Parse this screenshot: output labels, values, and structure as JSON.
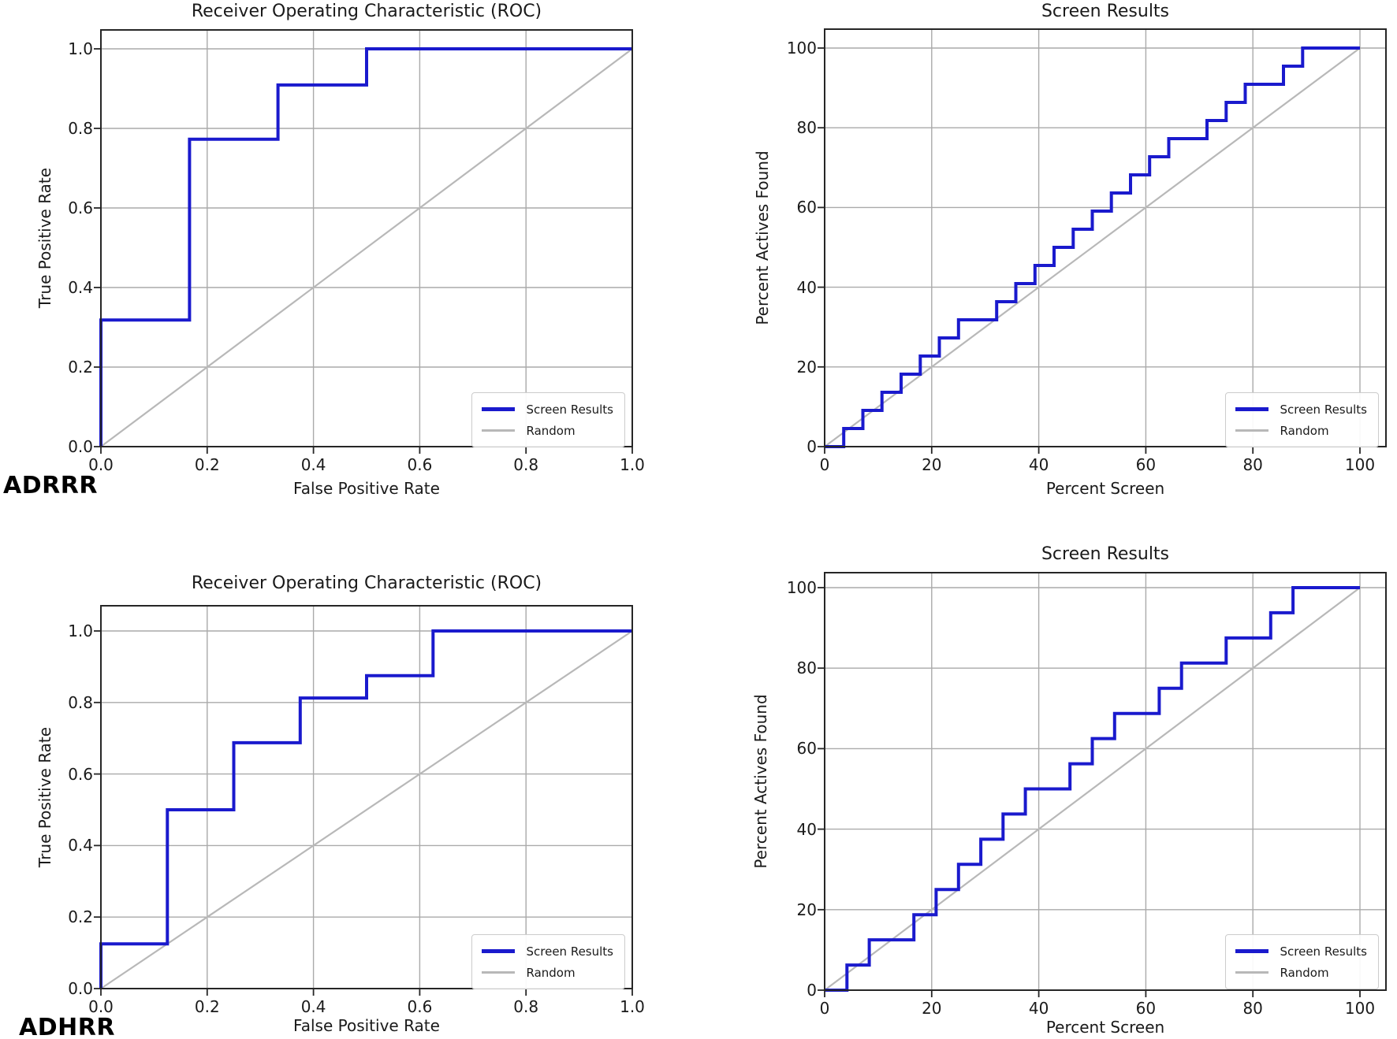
{
  "meta": {
    "background": "#ffffff",
    "text_color": "#1a1a1a",
    "grid_color": "#aaaaaa",
    "spine_color": "#262626",
    "accent_blue": "#1a1acd",
    "random_gray": "#b8b8b8"
  },
  "figure": {
    "panel_labels": [
      "ADRRR",
      "ADHRR"
    ]
  },
  "chart_data": [
    {
      "id": "adrrr-roc",
      "panel": "ADRRR",
      "type": "line",
      "title": "Receiver Operating Characteristic (ROC)",
      "xlabel": "False Positive Rate",
      "ylabel": "True Positive Rate",
      "xlim": [
        0,
        1.0
      ],
      "ylim": [
        0,
        1.05
      ],
      "grid": true,
      "xtick_values": [
        0,
        0.2,
        0.4,
        0.6,
        0.8,
        1.0
      ],
      "xtick_labels": [
        "0.0",
        "0.2",
        "0.4",
        "0.6",
        "0.8",
        "1.0"
      ],
      "ytick_values": [
        0,
        0.2,
        0.4,
        0.6,
        0.8,
        1.0
      ],
      "ytick_labels": [
        "0.0",
        "0.2",
        "0.4",
        "0.6",
        "0.8",
        "1.0"
      ],
      "legend": {
        "position": "lower right"
      },
      "series": [
        {
          "name": "Screen Results",
          "color": "#1a1acd",
          "line_width": 4,
          "drawstyle": "steps-post",
          "points": [
            [
              0,
              0
            ],
            [
              0,
              0.3182
            ],
            [
              0.1667,
              0.3182
            ],
            [
              0.1667,
              0.7727
            ],
            [
              0.3333,
              0.7727
            ],
            [
              0.3333,
              0.9091
            ],
            [
              0.5,
              0.9091
            ],
            [
              0.5,
              1.0
            ],
            [
              1.0,
              1.0
            ]
          ]
        },
        {
          "name": "Random",
          "color": "#b8b8b8",
          "line_width": 2.2,
          "drawstyle": "default",
          "points": [
            [
              0,
              0
            ],
            [
              1.0,
              1.0
            ]
          ]
        }
      ]
    },
    {
      "id": "adrrr-screen",
      "panel": "ADRRR",
      "type": "line",
      "title": "Screen Results",
      "xlabel": "Percent Screen",
      "ylabel": "Percent Actives Found",
      "xlim": [
        0,
        105
      ],
      "ylim": [
        0,
        105
      ],
      "grid": true,
      "xtick_values": [
        0,
        20,
        40,
        60,
        80,
        100
      ],
      "xtick_labels": [
        "0",
        "20",
        "40",
        "60",
        "80",
        "100"
      ],
      "ytick_values": [
        0,
        20,
        40,
        60,
        80,
        100
      ],
      "ytick_labels": [
        "0",
        "20",
        "40",
        "60",
        "80",
        "100"
      ],
      "legend": {
        "position": "lower right"
      },
      "series": [
        {
          "name": "Screen Results",
          "color": "#1a1acd",
          "line_width": 4,
          "drawstyle": "steps-post",
          "points": [
            [
              0,
              0
            ],
            [
              3.57,
              4.55
            ],
            [
              7.14,
              9.09
            ],
            [
              10.71,
              13.64
            ],
            [
              14.29,
              18.18
            ],
            [
              17.86,
              22.73
            ],
            [
              21.43,
              27.27
            ],
            [
              25.0,
              31.82
            ],
            [
              28.57,
              31.82
            ],
            [
              32.14,
              36.36
            ],
            [
              35.71,
              40.91
            ],
            [
              39.29,
              45.45
            ],
            [
              42.86,
              50.0
            ],
            [
              46.43,
              54.55
            ],
            [
              50.0,
              59.09
            ],
            [
              53.57,
              63.64
            ],
            [
              57.14,
              68.18
            ],
            [
              60.71,
              72.73
            ],
            [
              64.29,
              77.27
            ],
            [
              67.86,
              77.27
            ],
            [
              71.43,
              81.82
            ],
            [
              75.0,
              86.36
            ],
            [
              78.57,
              90.91
            ],
            [
              82.14,
              90.91
            ],
            [
              85.71,
              95.45
            ],
            [
              89.29,
              100.0
            ],
            [
              92.86,
              100.0
            ],
            [
              96.43,
              100.0
            ],
            [
              100.0,
              100.0
            ]
          ]
        },
        {
          "name": "Random",
          "color": "#b8b8b8",
          "line_width": 2.2,
          "drawstyle": "default",
          "points": [
            [
              0,
              0
            ],
            [
              100,
              100
            ]
          ]
        }
      ]
    },
    {
      "id": "adhrr-roc",
      "panel": "ADHRR",
      "type": "line",
      "title": "Receiver Operating Characteristic (ROC)",
      "xlabel": "False Positive Rate",
      "ylabel": "True Positive Rate",
      "xlim": [
        0,
        1.0
      ],
      "ylim": [
        0,
        1.05
      ],
      "grid": true,
      "xtick_values": [
        0,
        0.2,
        0.4,
        0.6,
        0.8,
        1.0
      ],
      "xtick_labels": [
        "0.0",
        "0.2",
        "0.4",
        "0.6",
        "0.8",
        "1.0"
      ],
      "ytick_values": [
        0,
        0.2,
        0.4,
        0.6,
        0.8,
        1.0
      ],
      "ytick_labels": [
        "0.0",
        "0.2",
        "0.4",
        "0.6",
        "0.8",
        "1.0"
      ],
      "legend": {
        "position": "lower right"
      },
      "series": [
        {
          "name": "Screen Results",
          "color": "#1a1acd",
          "line_width": 4,
          "drawstyle": "steps-post",
          "points": [
            [
              0,
              0
            ],
            [
              0,
              0.125
            ],
            [
              0.125,
              0.125
            ],
            [
              0.125,
              0.5
            ],
            [
              0.25,
              0.5
            ],
            [
              0.25,
              0.6875
            ],
            [
              0.375,
              0.6875
            ],
            [
              0.375,
              0.8125
            ],
            [
              0.5,
              0.8125
            ],
            [
              0.5,
              0.875
            ],
            [
              0.625,
              0.875
            ],
            [
              0.625,
              1.0
            ],
            [
              1.0,
              1.0
            ]
          ]
        },
        {
          "name": "Random",
          "color": "#b8b8b8",
          "line_width": 2.2,
          "drawstyle": "default",
          "points": [
            [
              0,
              0
            ],
            [
              1.0,
              1.0
            ]
          ]
        }
      ]
    },
    {
      "id": "adhrr-screen",
      "panel": "ADHRR",
      "type": "line",
      "title": "Screen Results",
      "xlabel": "Percent Screen",
      "ylabel": "Percent Actives Found",
      "xlim": [
        0,
        105
      ],
      "ylim": [
        0,
        105
      ],
      "grid": true,
      "xtick_values": [
        0,
        20,
        40,
        60,
        80,
        100
      ],
      "xtick_labels": [
        "0",
        "20",
        "40",
        "60",
        "80",
        "100"
      ],
      "ytick_values": [
        0,
        20,
        40,
        60,
        80,
        100
      ],
      "ytick_labels": [
        "0",
        "20",
        "40",
        "60",
        "80",
        "100"
      ],
      "legend": {
        "position": "lower right"
      },
      "series": [
        {
          "name": "Screen Results",
          "color": "#1a1acd",
          "line_width": 4,
          "drawstyle": "steps-post",
          "points": [
            [
              0,
              0
            ],
            [
              4.17,
              6.25
            ],
            [
              8.33,
              12.5
            ],
            [
              12.5,
              12.5
            ],
            [
              16.67,
              18.75
            ],
            [
              20.83,
              25.0
            ],
            [
              25.0,
              31.25
            ],
            [
              29.17,
              37.5
            ],
            [
              33.33,
              43.75
            ],
            [
              37.5,
              50.0
            ],
            [
              41.67,
              50.0
            ],
            [
              45.83,
              56.25
            ],
            [
              50.0,
              62.5
            ],
            [
              54.17,
              68.75
            ],
            [
              58.33,
              68.75
            ],
            [
              62.5,
              75.0
            ],
            [
              66.67,
              81.25
            ],
            [
              70.83,
              81.25
            ],
            [
              75.0,
              87.5
            ],
            [
              79.17,
              87.5
            ],
            [
              83.33,
              93.75
            ],
            [
              87.5,
              100.0
            ],
            [
              91.67,
              100.0
            ],
            [
              95.83,
              100.0
            ],
            [
              100.0,
              100.0
            ]
          ]
        },
        {
          "name": "Random",
          "color": "#b8b8b8",
          "line_width": 2.2,
          "drawstyle": "default",
          "points": [
            [
              0,
              0
            ],
            [
              100,
              100
            ]
          ]
        }
      ]
    }
  ]
}
